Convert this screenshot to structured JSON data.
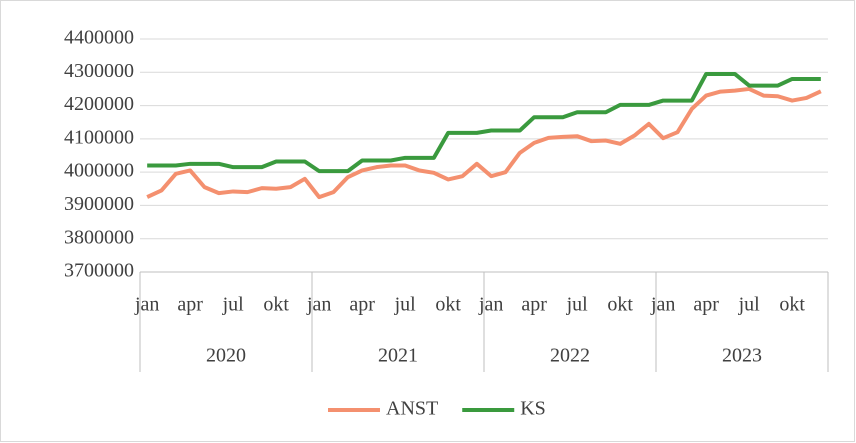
{
  "chart_data": {
    "type": "line",
    "categories": [
      "jan",
      null,
      null,
      "apr",
      null,
      null,
      "jul",
      null,
      null,
      "okt",
      null,
      null,
      "jan",
      null,
      null,
      "apr",
      null,
      null,
      "jul",
      null,
      null,
      "okt",
      null,
      null,
      "jan",
      null,
      null,
      "apr",
      null,
      null,
      "jul",
      null,
      null,
      "okt",
      null,
      null,
      "jan",
      null,
      null,
      "apr",
      null,
      null,
      "jul",
      null,
      null,
      "okt",
      null,
      null
    ],
    "x_groups": [
      "2020",
      "2021",
      "2022",
      "2023"
    ],
    "series": [
      {
        "name": "ANST",
        "color": "#f4906f",
        "values": [
          3925000,
          3945000,
          3995000,
          4005000,
          3955000,
          3937000,
          3942000,
          3940000,
          3952000,
          3950000,
          3955000,
          3980000,
          3925000,
          3940000,
          3985000,
          4005000,
          4015000,
          4020000,
          4020000,
          4005000,
          3998000,
          3978000,
          3988000,
          4025000,
          3988000,
          4000000,
          4058000,
          4088000,
          4103000,
          4106000,
          4108000,
          4093000,
          4095000,
          4085000,
          4110000,
          4145000,
          4102000,
          4120000,
          4190000,
          4230000,
          4242000,
          4245000,
          4250000,
          4230000,
          4228000,
          4215000,
          4223000,
          4243000
        ]
      },
      {
        "name": "KS",
        "color": "#3a9a3e",
        "values": [
          4020000,
          4020000,
          4020000,
          4025000,
          4025000,
          4025000,
          4015000,
          4015000,
          4015000,
          4032000,
          4032000,
          4032000,
          4003000,
          4003000,
          4003000,
          4035000,
          4035000,
          4035000,
          4043000,
          4043000,
          4043000,
          4118000,
          4118000,
          4118000,
          4125000,
          4125000,
          4125000,
          4165000,
          4165000,
          4165000,
          4180000,
          4180000,
          4180000,
          4202000,
          4202000,
          4202000,
          4215000,
          4215000,
          4215000,
          4295000,
          4295000,
          4295000,
          4260000,
          4260000,
          4260000,
          4280000,
          4280000,
          4280000
        ]
      }
    ],
    "ylim": [
      3700000,
      4400000
    ],
    "yticks": [
      3700000,
      3800000,
      3900000,
      4000000,
      4100000,
      4200000,
      4300000,
      4400000
    ],
    "grid": true,
    "legend": "bottom"
  }
}
